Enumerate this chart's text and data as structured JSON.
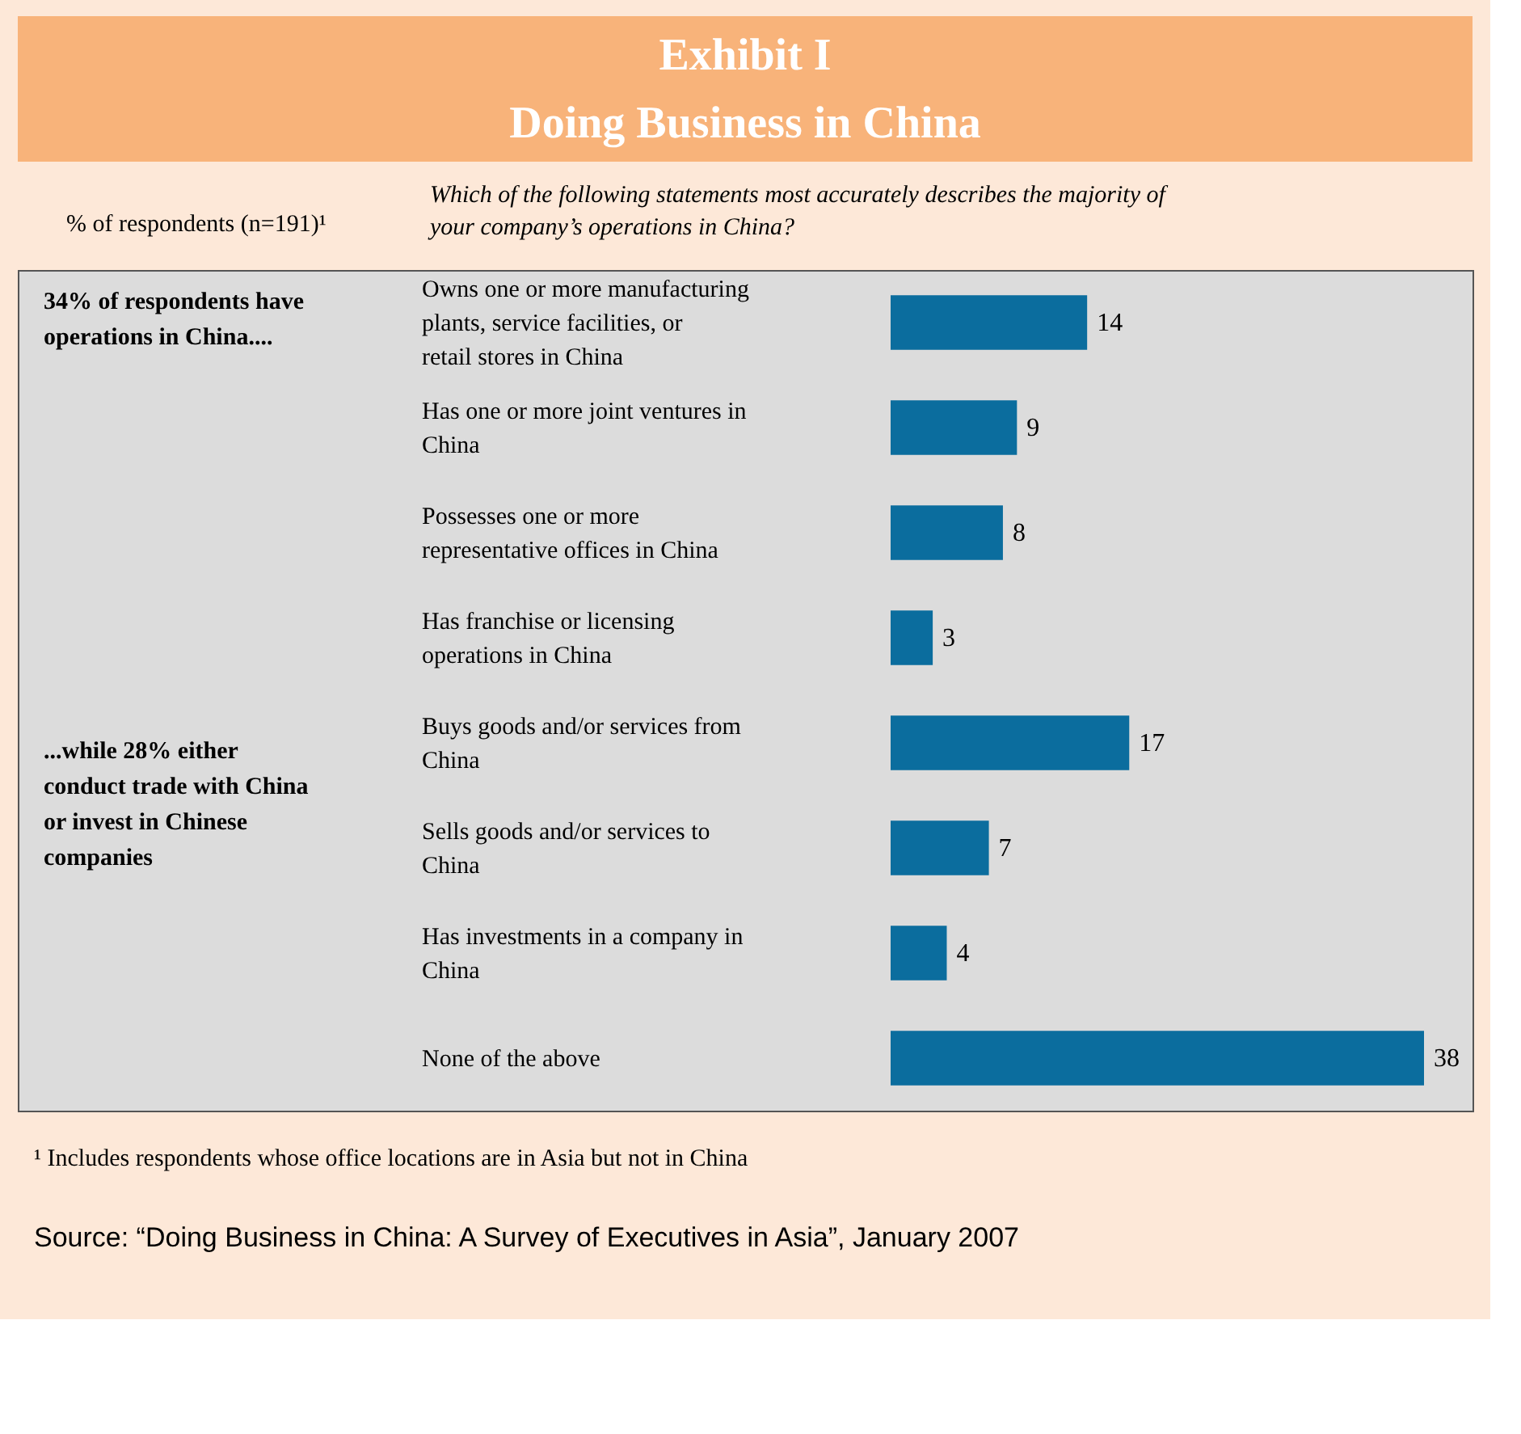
{
  "chart_data": {
    "type": "bar",
    "orientation": "horizontal",
    "title": "Exhibit I\nDoing Business in China",
    "subtitle": "Which of the following statements most accurately describes the majority of your company’s operations in China?",
    "xlabel": "% of respondents (n=191)¹",
    "categories": [
      "Owns one or more manufacturing plants, service facilities, or retail stores in China",
      "Has one or more joint ventures in China",
      "Possesses one or more representative offices in China",
      "Has franchise or licensing operations in China",
      "Buys goods and/or services from China",
      "Sells goods and/or services to China",
      "Has investments in a company in China",
      "None of the above"
    ],
    "values": [
      14,
      9,
      8,
      3,
      17,
      7,
      4,
      38
    ],
    "color": "#0b6d9e",
    "data_labels": true,
    "annotations": [
      "34% of respondents have operations in China....",
      "...while 28% either conduct trade with China or invest in Chinese companies",
      "¹ Includes respondents whose office locations are in Asia but not in China",
      "Source: “Doing Business in China: A Survey of Executives in Asia”, January 2007"
    ]
  }
}
